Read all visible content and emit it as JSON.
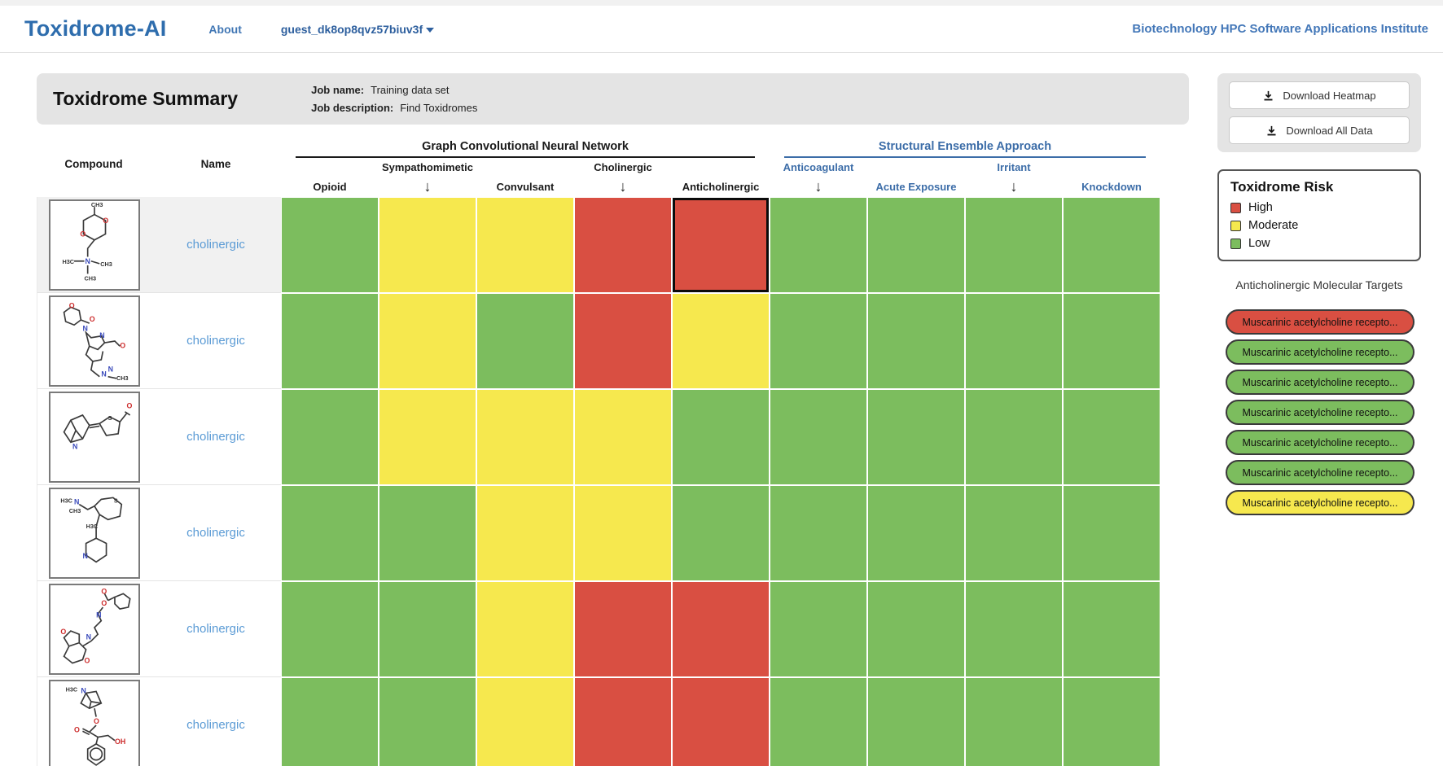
{
  "header": {
    "brand": "Toxidrome-AI",
    "nav_about": "About",
    "user_menu": "guest_dk8op8qvz57biuv3f",
    "institute": "Biotechnology HPC Software Applications Institute"
  },
  "summary": {
    "title": "Toxidrome Summary",
    "job_name_label": "Job name:",
    "job_name_value": "Training data set",
    "job_description_label": "Job description:",
    "job_description_value": "Find Toxidromes"
  },
  "downloads": {
    "heatmap_button": "Download Heatmap",
    "all_data_button": "Download All Data"
  },
  "table_headers": {
    "compound": "Compound",
    "name": "Name"
  },
  "chart_data": {
    "type": "heatmap",
    "arrow_glyph": "↓",
    "columns": [
      "Opioid",
      "Sympathomimetic",
      "Convulsant",
      "Cholinergic",
      "Anticholinergic",
      "Anticoagulant",
      "Acute Exposure",
      "Irritant",
      "Knockdown"
    ],
    "column_groups": [
      {
        "label": "Graph Convolutional Neural Network",
        "columns": [
          "Opioid",
          "Sympathomimetic",
          "Convulsant",
          "Cholinergic",
          "Anticholinergic"
        ],
        "color": "#1a1a1a"
      },
      {
        "label": "Structural Ensemble Approach",
        "columns": [
          "Anticoagulant",
          "Acute Exposure",
          "Irritant",
          "Knockdown"
        ],
        "color": "#3c6da8"
      }
    ],
    "stagger_top_columns": [
      "Sympathomimetic",
      "Cholinergic",
      "Anticoagulant",
      "Irritant"
    ],
    "rows": [
      {
        "name": "cholinergic",
        "values": [
          "low",
          "moderate",
          "moderate",
          "high",
          "high",
          "low",
          "low",
          "low",
          "low"
        ]
      },
      {
        "name": "cholinergic",
        "values": [
          "low",
          "moderate",
          "low",
          "high",
          "moderate",
          "low",
          "low",
          "low",
          "low"
        ]
      },
      {
        "name": "cholinergic",
        "values": [
          "low",
          "moderate",
          "moderate",
          "moderate",
          "low",
          "low",
          "low",
          "low",
          "low"
        ]
      },
      {
        "name": "cholinergic",
        "values": [
          "low",
          "low",
          "moderate",
          "moderate",
          "low",
          "low",
          "low",
          "low",
          "low"
        ]
      },
      {
        "name": "cholinergic",
        "values": [
          "low",
          "low",
          "moderate",
          "high",
          "high",
          "low",
          "low",
          "low",
          "low"
        ]
      },
      {
        "name": "cholinergic",
        "values": [
          "low",
          "low",
          "moderate",
          "high",
          "high",
          "low",
          "low",
          "low",
          "low"
        ]
      }
    ],
    "selected_cell": {
      "row_index": 0,
      "column": "Anticholinergic"
    },
    "risk_colors": {
      "high": "#d94f42",
      "moderate": "#f6e84e",
      "low": "#7cbd5e"
    }
  },
  "legend": {
    "title": "Toxidrome Risk",
    "items": [
      {
        "label": "High",
        "risk": "high"
      },
      {
        "label": "Moderate",
        "risk": "moderate"
      },
      {
        "label": "Low",
        "risk": "low"
      }
    ]
  },
  "targets": {
    "title": "Anticholinergic Molecular Targets",
    "pills": [
      {
        "label": "Muscarinic acetylcholine recepto...",
        "risk": "high"
      },
      {
        "label": "Muscarinic acetylcholine recepto...",
        "risk": "low"
      },
      {
        "label": "Muscarinic acetylcholine recepto...",
        "risk": "low"
      },
      {
        "label": "Muscarinic acetylcholine recepto...",
        "risk": "low"
      },
      {
        "label": "Muscarinic acetylcholine recepto...",
        "risk": "low"
      },
      {
        "label": "Muscarinic acetylcholine recepto...",
        "risk": "low"
      },
      {
        "label": "Muscarinic acetylcholine recepto...",
        "risk": "moderate"
      }
    ]
  }
}
